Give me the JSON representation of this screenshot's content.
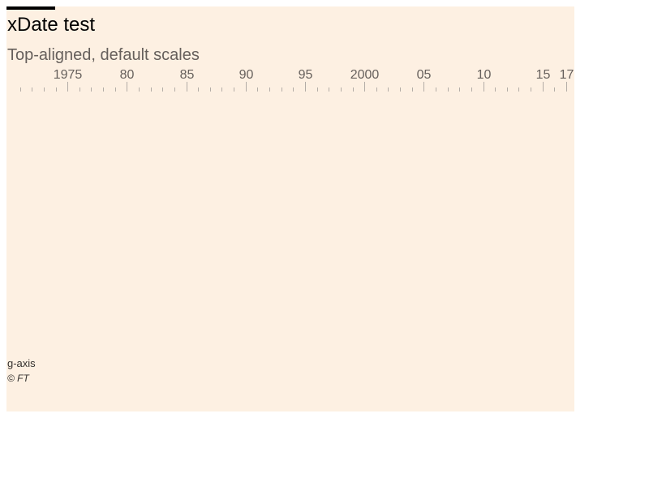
{
  "chart_data": {
    "type": "line",
    "title": "xDate test",
    "subtitle": "Top-aligned, default scales",
    "source": "g-axis",
    "credit": "© FT",
    "xaxis": {
      "orientation": "top",
      "scale": "time",
      "domain": [
        1970,
        2017
      ],
      "major_ticks": [
        {
          "value": 1975,
          "label": "1975"
        },
        {
          "value": 1980,
          "label": "80"
        },
        {
          "value": 1985,
          "label": "85"
        },
        {
          "value": 1990,
          "label": "90"
        },
        {
          "value": 1995,
          "label": "95"
        },
        {
          "value": 2000,
          "label": "2000"
        },
        {
          "value": 2005,
          "label": "05"
        },
        {
          "value": 2010,
          "label": "10"
        },
        {
          "value": 2015,
          "label": "15"
        },
        {
          "value": 2017,
          "label": "17"
        }
      ],
      "minor_tick_interval_years": 1
    },
    "series": [],
    "grid": false
  }
}
